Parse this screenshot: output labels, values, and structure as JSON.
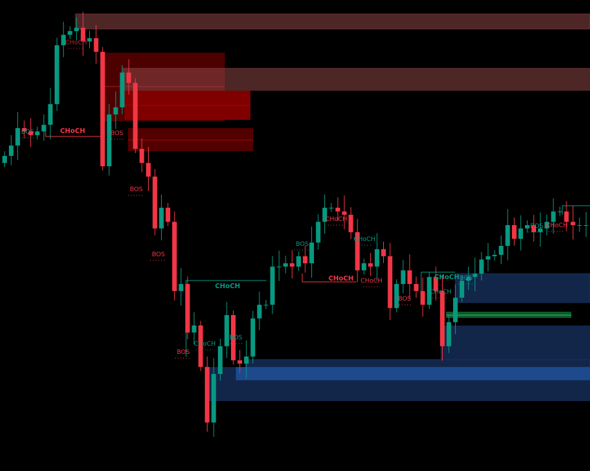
{
  "chart_data": {
    "type": "candlestick",
    "title": "",
    "colors": {
      "up": "#089981",
      "down": "#f23645",
      "bearish_zone": "#4d0000",
      "bullish_zone": "#12264a",
      "premium_zone": "#4f2727",
      "fvg_green": "#0b5a2a"
    },
    "closes": [
      66.9,
      69.1,
      72.8,
      72.1,
      71.3,
      72.1,
      73.5,
      77.9,
      90.4,
      92.6,
      93.4,
      94.1,
      91.2,
      91.9,
      89.0,
      64.7,
      75.7,
      77.2,
      84.6,
      82.4,
      68.4,
      65.4,
      62.5,
      51.5,
      55.9,
      52.9,
      38.2,
      39.7,
      29.4,
      30.9,
      22.1,
      10.3,
      20.6,
      26.5,
      33.1,
      23.5,
      22.8,
      24.3,
      32.4,
      35.3,
      35.3,
      43.4,
      43.4,
      44.1,
      43.4,
      45.6,
      44.1,
      48.5,
      52.9,
      55.9,
      55.9,
      55.1,
      54.4,
      50.7,
      42.6,
      44.1,
      43.4,
      47.1,
      45.6,
      34.6,
      39.7,
      42.6,
      39.7,
      38.2,
      35.3,
      41.2,
      38.2,
      26.5,
      31.6,
      36.8,
      40.4,
      41.2,
      41.9,
      44.9,
      45.6,
      45.9,
      47.8,
      52.2,
      49.3,
      51.5,
      52.2,
      50.7,
      51.5,
      52.9,
      55.1,
      55.1,
      52.9,
      52.2,
      52.2,
      52.2
    ],
    "value_range": [
      0,
      100
    ],
    "grid": false,
    "annotations": [
      {
        "text": "BOS",
        "color": "#4a8a7a",
        "bold": false
      },
      {
        "text": "CHoCH",
        "color": "#f23645",
        "bold": true
      },
      {
        "text": "CHoCH",
        "color": "#c02030",
        "bold": false
      },
      {
        "text": "BOS",
        "color": "#f23645",
        "bold": false
      },
      {
        "text": "BOS",
        "color": "#f23645",
        "bold": false
      },
      {
        "text": "BOS",
        "color": "#f23645",
        "bold": false
      },
      {
        "text": "CHoCH",
        "color": "#089981",
        "bold": true
      },
      {
        "text": "BOS",
        "color": "#f23645",
        "bold": false
      },
      {
        "text": "CHoCH",
        "color": "#089981",
        "bold": false
      },
      {
        "text": "BOS",
        "color": "#089981",
        "bold": false
      },
      {
        "text": "BOS",
        "color": "#089981",
        "bold": false
      },
      {
        "text": "CHoCH",
        "color": "#f23645",
        "bold": false
      },
      {
        "text": "CHoCH",
        "color": "#089981",
        "bold": false
      },
      {
        "text": "CHoCH",
        "color": "#f23645",
        "bold": true
      },
      {
        "text": "CHoCH",
        "color": "#f23645",
        "bold": false
      },
      {
        "text": "BOS",
        "color": "#f23645",
        "bold": false
      },
      {
        "text": "CHoCH",
        "color": "#089981",
        "bold": true
      },
      {
        "text": "BOS",
        "color": "#2a8aa0",
        "bold": false
      },
      {
        "text": "CHoCH",
        "color": "#089981",
        "bold": false
      },
      {
        "text": "BOS",
        "color": "#089981",
        "bold": false
      },
      {
        "text": "CHoCH",
        "color": "#f23645",
        "bold": false
      }
    ]
  }
}
